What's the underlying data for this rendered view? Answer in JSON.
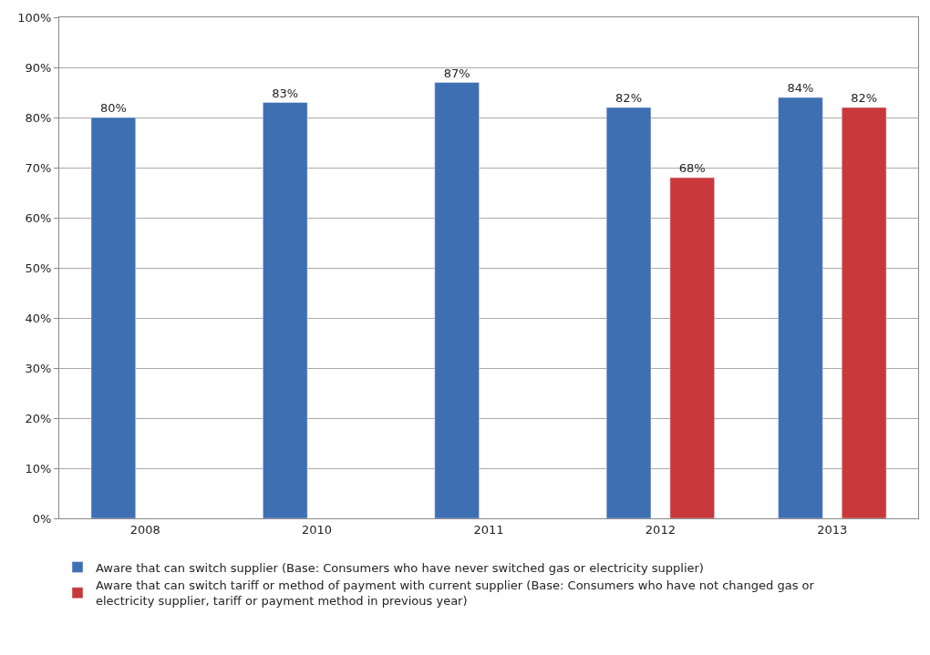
{
  "chart_data": {
    "type": "bar",
    "categories": [
      "2008",
      "2010",
      "2011",
      "2012",
      "2013"
    ],
    "series": [
      {
        "name": "Aware that can switch supplier (Base: Consumers who have never switched gas or electricity supplier)",
        "color": "#3e6fb3",
        "values": [
          80,
          83,
          87,
          82,
          84
        ],
        "value_labels": [
          "80%",
          "83%",
          "87%",
          "82%",
          "84%"
        ]
      },
      {
        "name": "Aware that can switch tariff or method of payment with current supplier (Base: Consumers who have not changed gas or electricity supplier, tariff or payment method in previous year)",
        "color": "#c9383a",
        "values": [
          null,
          null,
          null,
          68,
          82
        ],
        "value_labels": [
          null,
          null,
          null,
          "68%",
          "82%"
        ]
      }
    ],
    "ylim": [
      0,
      100
    ],
    "yticks": [
      {
        "value": 0,
        "label": "0%"
      },
      {
        "value": 10,
        "label": "10%"
      },
      {
        "value": 20,
        "label": "20%"
      },
      {
        "value": 30,
        "label": "30%"
      },
      {
        "value": 40,
        "label": "40%"
      },
      {
        "value": 50,
        "label": "50%"
      },
      {
        "value": 60,
        "label": "60%"
      },
      {
        "value": 70,
        "label": "70%"
      },
      {
        "value": 80,
        "label": "80%"
      },
      {
        "value": 90,
        "label": "90%"
      },
      {
        "value": 100,
        "label": "100%"
      }
    ],
    "grid": "y",
    "legend": "bottom"
  }
}
